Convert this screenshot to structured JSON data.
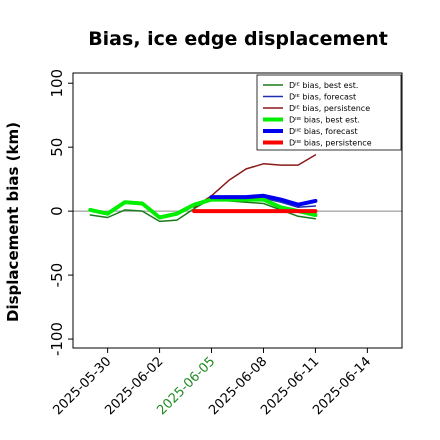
{
  "chart_data": {
    "type": "line",
    "title": "Bias, ice edge displacement",
    "ylabel": "Displacement bias (km)",
    "xlabel": "",
    "ylim": [
      -107,
      108
    ],
    "yticks": [
      100,
      50,
      0,
      -50,
      -100
    ],
    "x_ticks": [
      {
        "label": "2025-05-30",
        "color": "#000000"
      },
      {
        "label": "2025-06-02",
        "color": "#000000"
      },
      {
        "label": "2025-06-05",
        "color": "#228B22"
      },
      {
        "label": "2025-06-08",
        "color": "#000000"
      },
      {
        "label": "2025-06-11",
        "color": "#000000"
      },
      {
        "label": "2025-06-14",
        "color": "#000000"
      }
    ],
    "xlim": [
      "2025-05-28",
      "2025-06-16"
    ],
    "zero_line": true,
    "legend_position": "top-right",
    "series": [
      {
        "name": "Dᴵᴱ bias, best est.",
        "color": "#1a7a1a",
        "width": 1.5,
        "x": [
          "2025-05-29",
          "2025-05-30",
          "2025-05-31",
          "2025-06-01",
          "2025-06-02",
          "2025-06-03",
          "2025-06-04",
          "2025-06-05",
          "2025-06-06",
          "2025-06-07",
          "2025-06-08",
          "2025-06-09",
          "2025-06-10",
          "2025-06-11"
        ],
        "values": [
          -3,
          -5,
          1,
          0,
          -8,
          -7,
          2,
          10,
          8,
          7,
          6,
          1,
          -4,
          -6
        ]
      },
      {
        "name": "Dᴵᴱ bias, forecast",
        "color": "#1f2fb3",
        "width": 1.5,
        "x": [
          "2025-06-05",
          "2025-06-06",
          "2025-06-07",
          "2025-06-08",
          "2025-06-09",
          "2025-06-10",
          "2025-06-11"
        ],
        "values": [
          11,
          10,
          9,
          10,
          7,
          3,
          4
        ]
      },
      {
        "name": "Dᴵᴱ bias, persistence",
        "color": "#8b1a1a",
        "width": 1.5,
        "x": [
          "2025-06-04",
          "2025-06-05",
          "2025-06-06",
          "2025-06-07",
          "2025-06-08",
          "2025-06-09",
          "2025-06-10",
          "2025-06-11"
        ],
        "values": [
          3,
          12,
          24,
          33,
          37,
          36,
          36,
          44
        ]
      },
      {
        "name": "Dᴵᴵᴱ bias, best est.",
        "color": "#00ee00",
        "width": 4,
        "x": [
          "2025-05-29",
          "2025-05-30",
          "2025-05-31",
          "2025-06-01",
          "2025-06-02",
          "2025-06-03",
          "2025-06-04",
          "2025-06-05",
          "2025-06-06",
          "2025-06-07",
          "2025-06-08",
          "2025-06-09",
          "2025-06-10",
          "2025-06-11"
        ],
        "values": [
          1,
          -2,
          7,
          6,
          -5,
          -2,
          5,
          9,
          9,
          9,
          9,
          3,
          0,
          -3
        ]
      },
      {
        "name": "Dᴵᴵᴱ bias, forecast",
        "color": "#0000ee",
        "width": 4,
        "x": [
          "2025-06-05",
          "2025-06-06",
          "2025-06-07",
          "2025-06-08",
          "2025-06-09",
          "2025-06-10",
          "2025-06-11"
        ],
        "values": [
          11,
          11,
          11,
          12,
          9,
          5,
          8
        ]
      },
      {
        "name": "Dᴵᴵᴱ bias, persistence",
        "color": "#ff0000",
        "width": 4,
        "x": [
          "2025-06-04",
          "2025-06-05",
          "2025-06-06",
          "2025-06-07",
          "2025-06-08",
          "2025-06-09",
          "2025-06-10",
          "2025-06-11"
        ],
        "values": [
          0,
          0,
          0,
          0,
          0,
          0,
          0,
          0
        ]
      }
    ]
  }
}
